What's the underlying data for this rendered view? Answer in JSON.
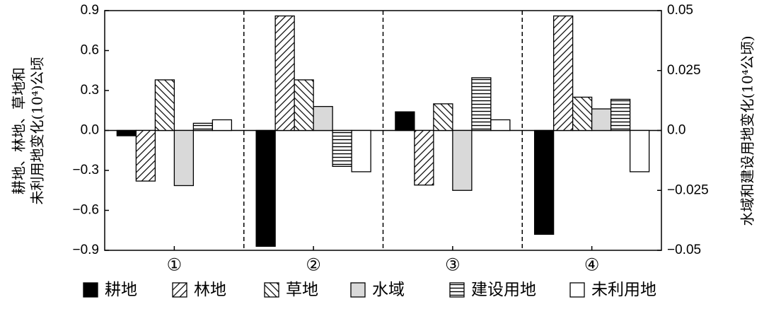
{
  "chart_data": {
    "type": "bar",
    "categories": [
      "①",
      "②",
      "③",
      "④"
    ],
    "ylabel": [
      "耕地、林地、草地和",
      "未利用地变化(10⁴)公顷"
    ],
    "y2label": "水域和建设用地变化(10⁴公顷)",
    "ylim": [
      -0.9,
      0.9
    ],
    "yticks": [
      {
        "value": -0.9,
        "label": "−0.9"
      },
      {
        "value": -0.6,
        "label": "−0.6"
      },
      {
        "value": -0.3,
        "label": "−0.3"
      },
      {
        "value": 0,
        "label": "0.0"
      },
      0.3,
      0.6,
      0.9
    ],
    "y2lim": [
      -0.05,
      0.05
    ],
    "y2ticks": [
      {
        "value": -0.05,
        "label": "−0.05"
      },
      {
        "value": -0.025,
        "label": "−0.025"
      },
      {
        "value": 0,
        "label": "0.0"
      },
      0.025,
      0.05
    ],
    "series": [
      {
        "name": "耕地",
        "color": "#000000",
        "values": [
          -0.04,
          -0.87,
          0.14,
          -0.78
        ]
      },
      {
        "name": "林地",
        "color": "#ffffff",
        "hatch": "backslash",
        "values": [
          -0.38,
          0.86,
          -0.41,
          0.86
        ]
      },
      {
        "name": "草地",
        "color": "#ffffff",
        "hatch": "slash",
        "values": [
          0.38,
          0.38,
          0.2,
          0.25
        ]
      },
      {
        "name": "水域",
        "color": "#d9d9d9",
        "axis": "y2",
        "values": [
          -0.023,
          0.01,
          -0.025,
          0.009
        ]
      },
      {
        "name": "建设用地",
        "color": "#ffffff",
        "hatch": "horizontal",
        "axis": "y2",
        "values": [
          0.003,
          -0.015,
          0.022,
          0.013
        ]
      },
      {
        "name": "未利用地",
        "color": "#ffffff",
        "values": [
          0.08,
          -0.31,
          0.08,
          -0.31
        ]
      }
    ]
  }
}
